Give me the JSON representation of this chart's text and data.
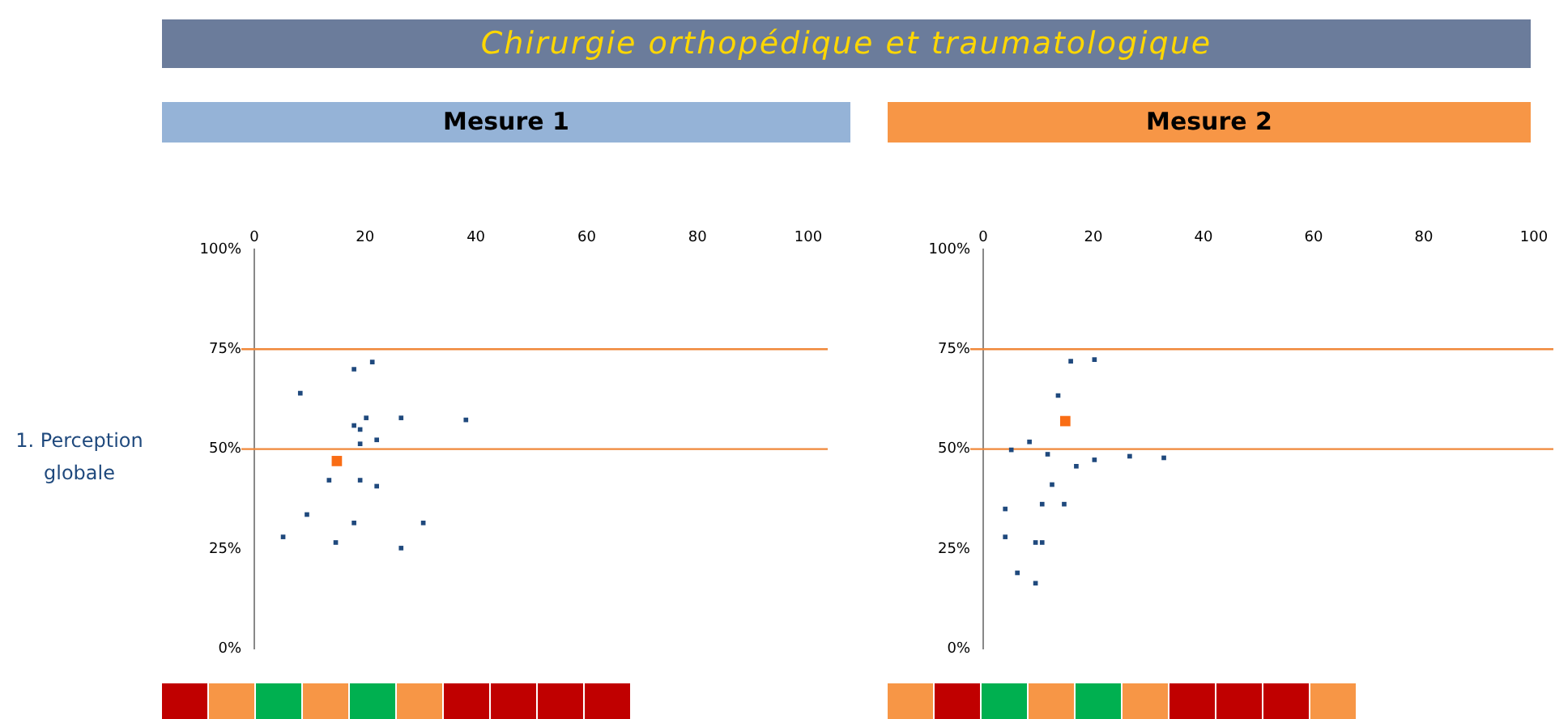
{
  "chart_data": [
    {
      "type": "scatter",
      "title": "Mesure 1",
      "ylabel": "1. Perception globale",
      "annotations": [
        "Chirurgie orthopédique et traumatologique"
      ],
      "xlim": [
        0,
        100
      ],
      "xticks": [
        0,
        20,
        40,
        60,
        80,
        100
      ],
      "ylim": [
        0,
        100
      ],
      "yticks": [
        {
          "value": 0,
          "label": "0%"
        },
        {
          "value": 25,
          "label": "25%"
        },
        {
          "value": 50,
          "label": "50%"
        },
        {
          "value": 75,
          "label": "75%"
        },
        {
          "value": 100,
          "label": "100%"
        }
      ],
      "grid": false,
      "legend": false,
      "marker": "square",
      "ref_lines": [
        {
          "axis": "y",
          "value": 75,
          "label": null,
          "color": "#f0883a"
        },
        {
          "axis": "y",
          "value": 50,
          "label": null,
          "color": "#f0883a"
        }
      ],
      "series": [
        {
          "color": "#1f497d",
          "x": [
            8.3,
            18,
            21.3,
            20.2,
            26.5,
            38.2,
            18,
            19.1,
            19.1,
            22.1,
            13.5,
            19.1,
            22.1,
            9.5,
            18,
            30.5,
            5.2,
            14.7,
            26.5
          ],
          "values": [
            64,
            70,
            71.8,
            57.8,
            57.8,
            57.3,
            55.9,
            54.9,
            51.3,
            52.3,
            42.2,
            42.2,
            40.7,
            33.6,
            31.5,
            31.5,
            28,
            26.6,
            25.2
          ]
        },
        {
          "color": "#f96d15",
          "x": [
            14.9
          ],
          "values": [
            47
          ]
        }
      ]
    },
    {
      "type": "scatter",
      "title": "Mesure 2",
      "xlim": [
        0,
        100
      ],
      "xticks": [
        0,
        20,
        40,
        60,
        80,
        100
      ],
      "ylim": [
        0,
        100
      ],
      "yticks": [
        {
          "value": 0,
          "label": "0%"
        },
        {
          "value": 25,
          "label": "25%"
        },
        {
          "value": 50,
          "label": "50%"
        },
        {
          "value": 75,
          "label": "75%"
        },
        {
          "value": 100,
          "label": "100%"
        }
      ],
      "grid": false,
      "legend": false,
      "marker": "square",
      "ref_lines": [
        {
          "axis": "y",
          "value": 75,
          "label": null,
          "color": "#f0883a"
        },
        {
          "axis": "y",
          "value": 50,
          "label": null,
          "color": "#f0883a"
        }
      ],
      "series": [
        {
          "color": "#1f497d",
          "x": [
            15.9,
            20.2,
            13.6,
            8.4,
            5.1,
            11.7,
            16.9,
            20.2,
            26.6,
            32.8,
            12.5,
            10.7,
            14.7,
            4,
            4,
            9.5,
            10.7,
            6.2,
            9.5
          ],
          "values": [
            72,
            72.4,
            63.4,
            51.8,
            49.8,
            48.7,
            45.7,
            47.3,
            48.2,
            47.8,
            41.1,
            36.2,
            36.2,
            35,
            28,
            26.6,
            26.6,
            19,
            16.4
          ]
        },
        {
          "color": "#f96d15",
          "x": [
            14.9
          ],
          "values": [
            57
          ]
        }
      ]
    }
  ]
}
